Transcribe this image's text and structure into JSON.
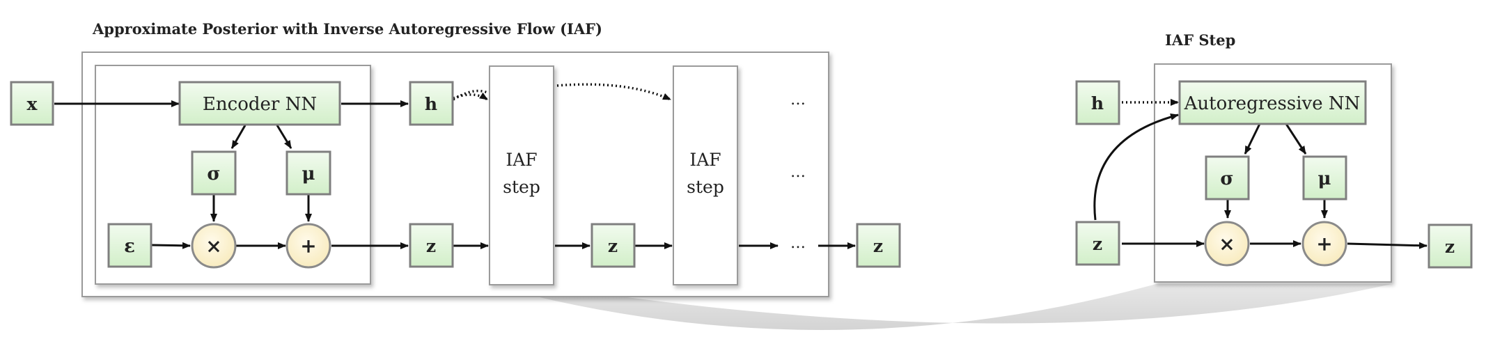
{
  "titles": {
    "main": "Approximate Posterior with Inverse Autoregressive Flow (IAF)",
    "step": "IAF Step"
  },
  "nodes": {
    "x": "x",
    "encoder": "Encoder NN",
    "sigma": "σ",
    "mu": "μ",
    "epsilon": "ε",
    "times": "×",
    "plus": "+",
    "h": "h",
    "z": "z",
    "iaf_step_line1": "IAF",
    "iaf_step_line2": "step",
    "ellipsis": "…",
    "autoregressive": "Autoregressive NN"
  },
  "colors": {
    "node_fill_top": "#f2fbef",
    "node_fill_bottom": "#d2efc9",
    "node_stroke": "#7f7f7f",
    "op_fill": "#fdf3d3",
    "frame_stroke": "#9a9a9a",
    "arrow": "#111111",
    "connector": "#d6d6d6"
  }
}
